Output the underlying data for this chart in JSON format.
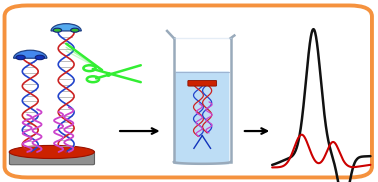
{
  "fig_width": 3.78,
  "fig_height": 1.82,
  "dpi": 100,
  "bg_color": "#ffffff",
  "border_color": "#f5923e",
  "border_lw": 2.5,
  "electrode_color": "#cc2200",
  "electrode_side_color": "#888888",
  "beaker_color": "#aabbcc",
  "water_color": "#bdddf5",
  "black_curve_color": "#111111",
  "red_curve_color": "#cc0000",
  "scissors_color": "#33ee33",
  "qd_blue": "#1133bb",
  "qd_green": "#44bb44",
  "purple_color": "#cc44cc",
  "dna_blue": "#2244cc",
  "dna_red": "#cc2222",
  "dna_gray": "#999999",
  "dna_silver": "#aaaaaa"
}
